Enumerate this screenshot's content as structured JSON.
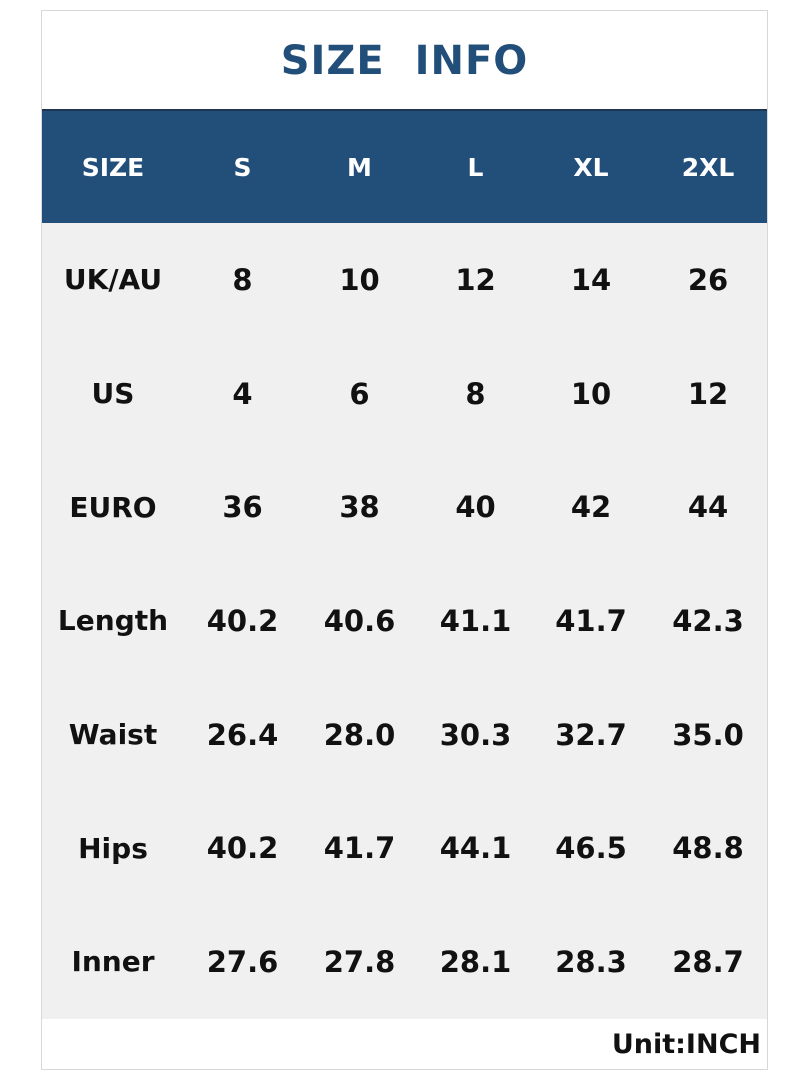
{
  "title": "SIZE  INFO",
  "header": {
    "label": "SIZE",
    "sizes": [
      "S",
      "M",
      "L",
      "XL",
      "2XL"
    ]
  },
  "rows": [
    {
      "label": "UK/AU",
      "values": [
        "8",
        "10",
        "12",
        "14",
        "26"
      ]
    },
    {
      "label": "US",
      "values": [
        "4",
        "6",
        "8",
        "10",
        "12"
      ]
    },
    {
      "label": "EURO",
      "values": [
        "36",
        "38",
        "40",
        "42",
        "44"
      ]
    },
    {
      "label": "Length",
      "values": [
        "40.2",
        "40.6",
        "41.1",
        "41.7",
        "42.3"
      ]
    },
    {
      "label": "Waist",
      "values": [
        "26.4",
        "28.0",
        "30.3",
        "32.7",
        "35.0"
      ]
    },
    {
      "label": "Hips",
      "values": [
        "40.2",
        "41.7",
        "44.1",
        "46.5",
        "48.8"
      ]
    },
    {
      "label": "Inner",
      "values": [
        "27.6",
        "27.8",
        "28.1",
        "28.3",
        "28.7"
      ]
    }
  ],
  "unit": "Unit:INCH",
  "colors": {
    "title": "#224f7a",
    "header_bg": "#224f7a",
    "body_bg": "#f0f0f0"
  }
}
